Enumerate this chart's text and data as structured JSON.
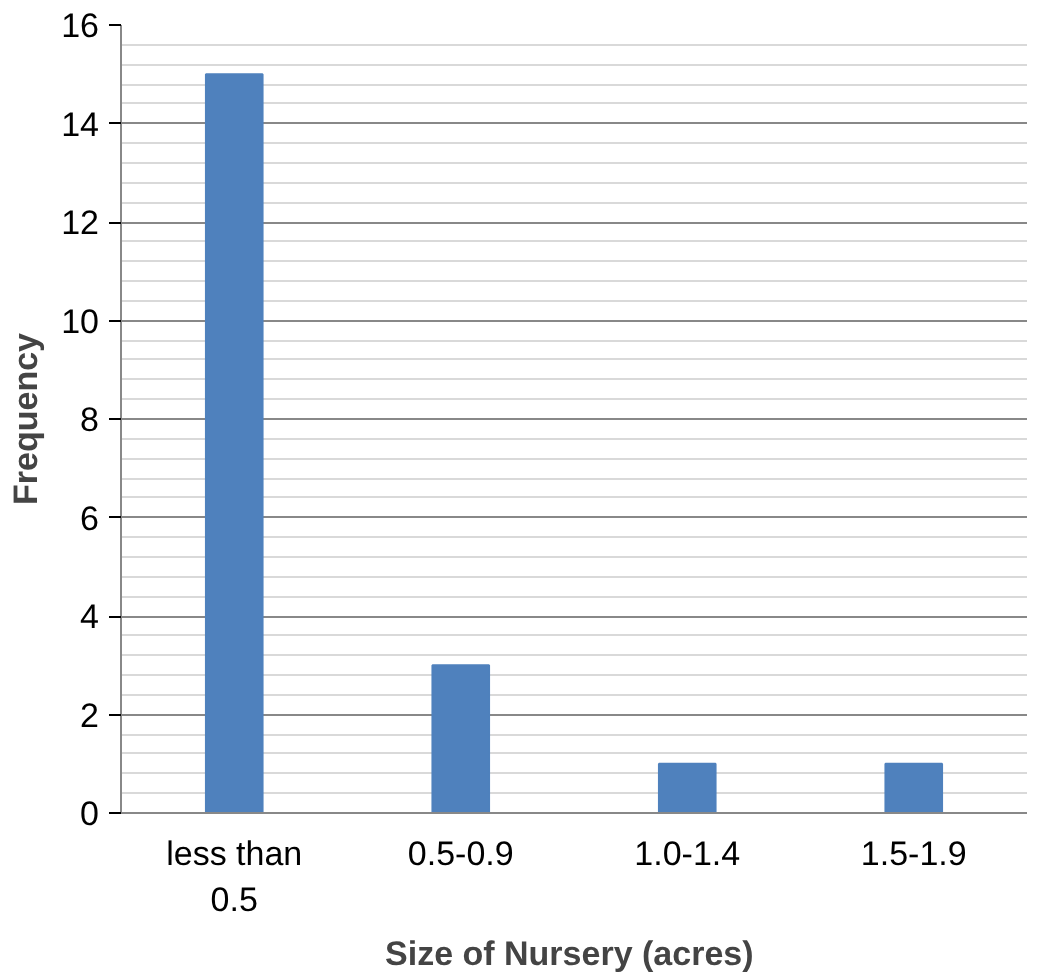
{
  "chart_data": {
    "type": "bar",
    "xlabel": "Size  of Nursery (acres)",
    "ylabel": "Frequency",
    "categories": [
      "less than 0.5",
      "0.5-0.9",
      "1.0-1.4",
      "1.5-1.9"
    ],
    "values": [
      15,
      3,
      1,
      1
    ],
    "color": "#4f81bd",
    "ylim": [
      0,
      16
    ],
    "yticks": [
      0,
      2,
      4,
      6,
      8,
      10,
      12,
      14,
      16
    ],
    "grid": "y"
  }
}
